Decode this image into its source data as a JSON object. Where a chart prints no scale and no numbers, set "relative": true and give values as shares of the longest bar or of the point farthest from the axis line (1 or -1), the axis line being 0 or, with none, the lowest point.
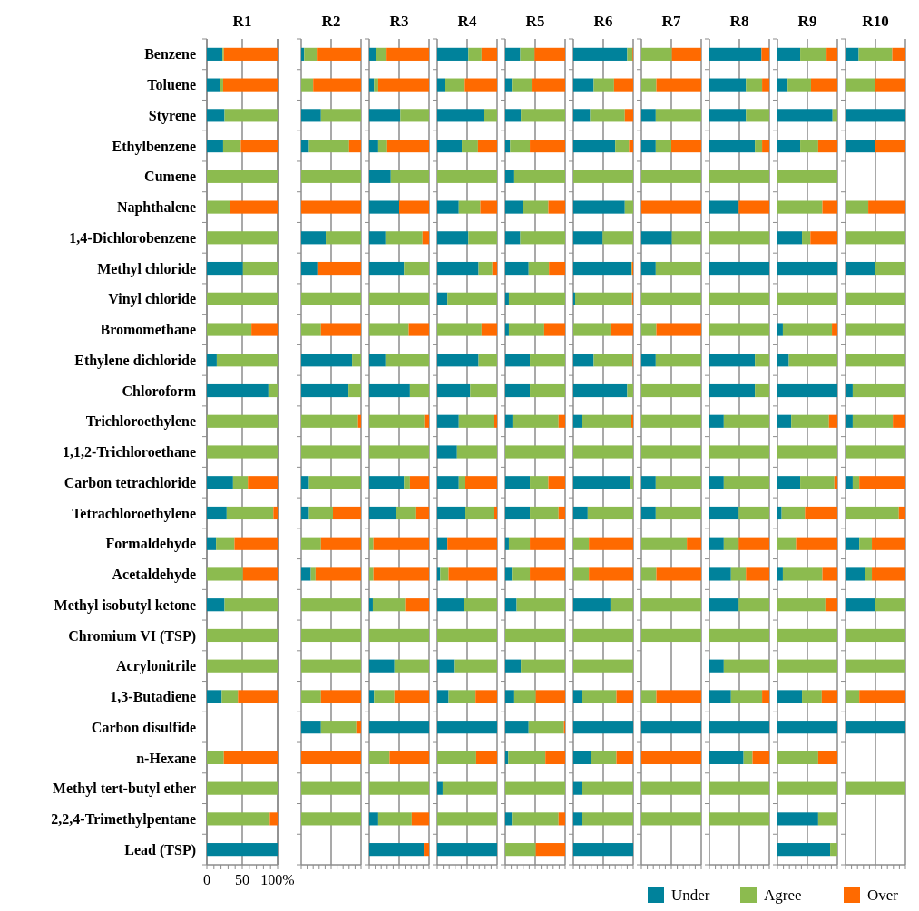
{
  "chart_data": [
    {
      "type": "bar",
      "orientation": "horizontal",
      "stacked": true,
      "title": "R1",
      "grid": "x",
      "legend": "bottom right",
      "xlim": [
        0,
        100
      ],
      "xticks": [
        0,
        {
          "value": 10,
          "label": null
        },
        {
          "value": 20,
          "label": null
        },
        {
          "value": 30,
          "label": null
        },
        {
          "value": 40,
          "label": null
        },
        50,
        {
          "value": 60,
          "label": null
        },
        {
          "value": 70,
          "label": null
        },
        {
          "value": 80,
          "label": null
        },
        {
          "value": 90,
          "label": null
        },
        {
          "value": 100,
          "label": "100%"
        }
      ],
      "categories": [
        "Benzene",
        "Toluene",
        "Styrene",
        "Ethylbenzene",
        "Cumene",
        "Naphthalene",
        "1,4-Dichlorobenzene",
        "Methyl chloride",
        "Vinyl chloride",
        "Bromomethane",
        "Ethylene dichloride",
        "Chloroform",
        "Trichloroethylene",
        "1,1,2-Trichloroethane",
        "Carbon tetrachloride",
        "Tetrachloroethylene",
        "Formaldehyde",
        "Acetaldehyde",
        "Methyl isobutyl ketone",
        "Chromium VI (TSP)",
        "Acrylonitrile",
        "1,3-Butadiene",
        "Carbon disulfide",
        "n-Hexane",
        "Methyl tert-butyl ether",
        "2,2,4-Trimethylpentane",
        "Lead (TSP)"
      ],
      "series": [
        {
          "name": "Under",
          "color": "#00829b",
          "values": [
            22,
            18,
            25,
            23,
            0,
            0,
            0,
            51,
            0,
            0,
            14,
            87,
            0,
            0,
            37,
            28,
            13,
            0,
            25,
            0,
            0,
            21,
            null,
            0,
            0,
            0,
            100
          ]
        },
        {
          "name": "Agree",
          "color": "#8cbb4f",
          "values": [
            2,
            5,
            75,
            25,
            100,
            33,
            100,
            49,
            100,
            63,
            86,
            13,
            100,
            100,
            21,
            66,
            26,
            51,
            75,
            100,
            100,
            23,
            null,
            24,
            100,
            89,
            0
          ]
        },
        {
          "name": "Over",
          "color": "#ff6a00",
          "values": [
            76,
            77,
            0,
            52,
            0,
            67,
            0,
            0,
            0,
            37,
            0,
            0,
            0,
            0,
            42,
            6,
            61,
            49,
            0,
            0,
            0,
            56,
            null,
            76,
            0,
            11,
            0
          ]
        }
      ]
    },
    {
      "type": "bar",
      "orientation": "horizontal",
      "stacked": true,
      "relative": true,
      "title": "R2",
      "ref_lines": [
        {
          "axis": "x",
          "value": 0.5,
          "color": "#8c8c8c"
        }
      ],
      "categories": [
        null,
        null,
        null,
        null,
        null,
        null,
        null,
        null,
        null,
        null,
        null,
        null,
        null,
        null,
        null,
        null,
        null,
        null,
        null,
        null,
        null,
        null,
        null,
        null,
        null,
        null,
        null
      ],
      "series": [
        {
          "color": "#00829b",
          "values": [
            0.05,
            0,
            0.33,
            0.13,
            0,
            0,
            0.41,
            0.27,
            0,
            0,
            0.85,
            0.79,
            0,
            0,
            0.13,
            0.13,
            0,
            0.16,
            0,
            0,
            0,
            0,
            0.33,
            0,
            0,
            0,
            null
          ]
        },
        {
          "color": "#8cbb4f",
          "values": [
            0.21,
            0.2,
            0.67,
            0.67,
            1,
            0,
            0.59,
            0,
            1,
            0.33,
            0.15,
            0.21,
            0.95,
            1,
            0.87,
            0.4,
            0.33,
            0.08,
            1,
            1,
            1,
            0.33,
            0.59,
            0,
            1,
            1,
            null
          ]
        },
        {
          "color": "#ff6a00",
          "values": [
            0.74,
            0.8,
            0,
            0.2,
            0,
            1,
            0,
            0.73,
            0,
            0.67,
            0,
            0,
            0.05,
            0,
            0,
            0.47,
            0.67,
            0.76,
            0,
            0,
            0,
            0.67,
            0.08,
            1,
            0,
            0,
            null
          ]
        }
      ]
    },
    {
      "type": "bar",
      "orientation": "horizontal",
      "stacked": true,
      "relative": true,
      "title": "R3",
      "ref_lines": [
        {
          "axis": "x",
          "value": 0.5,
          "color": "#8c8c8c"
        }
      ],
      "categories": [
        null,
        null,
        null,
        null,
        null,
        null,
        null,
        null,
        null,
        null,
        null,
        null,
        null,
        null,
        null,
        null,
        null,
        null,
        null,
        null,
        null,
        null,
        null,
        null,
        null,
        null,
        null
      ],
      "series": [
        {
          "color": "#00829b",
          "values": [
            0.12,
            0.08,
            0.52,
            0.15,
            0.36,
            0.5,
            0.27,
            0.58,
            0,
            0,
            0.27,
            0.68,
            0,
            0,
            0.58,
            0.45,
            0,
            0,
            0.06,
            0,
            0.42,
            0.08,
            1,
            0,
            0,
            0.15,
            0.91
          ]
        },
        {
          "color": "#8cbb4f",
          "values": [
            0.17,
            0.07,
            0.48,
            0.15,
            0.64,
            0,
            0.62,
            0.42,
            1,
            0.66,
            0.73,
            0.32,
            0.92,
            1,
            0.1,
            0.32,
            0.07,
            0.07,
            0.54,
            1,
            0.58,
            0.34,
            0,
            0.34,
            1,
            0.56,
            0
          ]
        },
        {
          "color": "#ff6a00",
          "values": [
            0.71,
            0.85,
            0,
            0.7,
            0,
            0.5,
            0.11,
            0,
            0,
            0.34,
            0,
            0,
            0.08,
            0,
            0.32,
            0.23,
            0.93,
            0.93,
            0.4,
            0,
            0,
            0.58,
            0,
            0.66,
            0,
            0.29,
            0.09
          ]
        }
      ]
    },
    {
      "type": "bar",
      "orientation": "horizontal",
      "stacked": true,
      "relative": true,
      "title": "R4",
      "ref_lines": [
        {
          "axis": "x",
          "value": 0.5,
          "color": "#8c8c8c"
        }
      ],
      "categories": [
        null,
        null,
        null,
        null,
        null,
        null,
        null,
        null,
        null,
        null,
        null,
        null,
        null,
        null,
        null,
        null,
        null,
        null,
        null,
        null,
        null,
        null,
        null,
        null,
        null,
        null,
        null
      ],
      "series": [
        {
          "color": "#00829b",
          "values": [
            0.52,
            0.13,
            0.78,
            0.41,
            0,
            0.36,
            0.52,
            0.69,
            0.17,
            0,
            0.69,
            0.55,
            0.36,
            0.33,
            0.36,
            0.47,
            0.17,
            0.05,
            0.45,
            0,
            0.28,
            0.19,
            1,
            0,
            0.09,
            0,
            1
          ]
        },
        {
          "color": "#8cbb4f",
          "values": [
            0.22,
            0.33,
            0.22,
            0.27,
            1,
            0.36,
            0.48,
            0.23,
            0.83,
            0.74,
            0.31,
            0.45,
            0.58,
            0.67,
            0.11,
            0.47,
            0,
            0.14,
            0.55,
            1,
            0.72,
            0.45,
            0,
            0.65,
            0.91,
            1,
            0
          ]
        },
        {
          "color": "#ff6a00",
          "values": [
            0.26,
            0.54,
            0,
            0.32,
            0,
            0.28,
            0,
            0.08,
            0,
            0.26,
            0,
            0,
            0.06,
            0,
            0.53,
            0.06,
            0.83,
            0.81,
            0,
            0,
            0,
            0.36,
            0,
            0.35,
            0,
            0,
            0
          ]
        }
      ]
    },
    {
      "type": "bar",
      "orientation": "horizontal",
      "stacked": true,
      "relative": true,
      "title": "R5",
      "ref_lines": [
        {
          "axis": "x",
          "value": 0.5,
          "color": "#8c8c8c"
        }
      ],
      "categories": [
        null,
        null,
        null,
        null,
        null,
        null,
        null,
        null,
        null,
        null,
        null,
        null,
        null,
        null,
        null,
        null,
        null,
        null,
        null,
        null,
        null,
        null,
        null,
        null,
        null,
        null,
        null
      ],
      "series": [
        {
          "color": "#00829b",
          "values": [
            0.25,
            0.11,
            0.26,
            0.08,
            0.15,
            0.29,
            0.25,
            0.39,
            0.06,
            0.06,
            0.41,
            0.41,
            0.12,
            0,
            0.41,
            0.41,
            0.06,
            0.11,
            0.19,
            0,
            0.26,
            0.15,
            0.39,
            0.05,
            0,
            0.11,
            0
          ]
        },
        {
          "color": "#8cbb4f",
          "values": [
            0.24,
            0.33,
            0.74,
            0.33,
            0.85,
            0.43,
            0.75,
            0.34,
            0.94,
            0.59,
            0.59,
            0.59,
            0.77,
            1,
            0.31,
            0.48,
            0.35,
            0.3,
            0.81,
            1,
            0.74,
            0.36,
            0.59,
            0.62,
            1,
            0.78,
            0.51
          ]
        },
        {
          "color": "#ff6a00",
          "values": [
            0.51,
            0.56,
            0,
            0.59,
            0,
            0.28,
            0,
            0.27,
            0,
            0.35,
            0,
            0,
            0.11,
            0,
            0.28,
            0.11,
            0.59,
            0.59,
            0,
            0,
            0,
            0.49,
            0.02,
            0.33,
            0,
            0.11,
            0.49
          ]
        }
      ]
    },
    {
      "type": "bar",
      "orientation": "horizontal",
      "stacked": true,
      "relative": true,
      "title": "R6",
      "ref_lines": [
        {
          "axis": "x",
          "value": 0.5,
          "color": "#8c8c8c"
        }
      ],
      "categories": [
        null,
        null,
        null,
        null,
        null,
        null,
        null,
        null,
        null,
        null,
        null,
        null,
        null,
        null,
        null,
        null,
        null,
        null,
        null,
        null,
        null,
        null,
        null,
        null,
        null,
        null,
        null
      ],
      "series": [
        {
          "color": "#00829b",
          "values": [
            0.9,
            0.34,
            0.28,
            0.7,
            0,
            0.86,
            0.49,
            0.96,
            0.03,
            0,
            0.34,
            0.9,
            0.14,
            0,
            0.94,
            0.24,
            0,
            0,
            0.62,
            0,
            0,
            0.14,
            1,
            0.29,
            0.14,
            0.14,
            1
          ]
        },
        {
          "color": "#8cbb4f",
          "values": [
            0.09,
            0.34,
            0.58,
            0.23,
            1,
            0.14,
            0.51,
            0.02,
            0.95,
            0.62,
            0.65,
            0.1,
            0.82,
            1,
            0.06,
            0.76,
            0.26,
            0.26,
            0.38,
            1,
            1,
            0.58,
            0,
            0.43,
            0.86,
            0.86,
            0
          ]
        },
        {
          "color": "#ff6a00",
          "values": [
            0.01,
            0.32,
            0.14,
            0.07,
            0,
            0,
            0,
            0.02,
            0.02,
            0.38,
            0.01,
            0,
            0.04,
            0,
            0,
            0,
            0.74,
            0.74,
            0,
            0,
            0,
            0.28,
            0,
            0.28,
            0,
            0,
            0
          ]
        }
      ]
    },
    {
      "type": "bar",
      "orientation": "horizontal",
      "stacked": true,
      "relative": true,
      "title": "R7",
      "ref_lines": [
        {
          "axis": "x",
          "value": 0.5,
          "color": "#8c8c8c"
        }
      ],
      "categories": [
        null,
        null,
        null,
        null,
        null,
        null,
        null,
        null,
        null,
        null,
        null,
        null,
        null,
        null,
        null,
        null,
        null,
        null,
        null,
        null,
        null,
        null,
        null,
        null,
        null,
        null,
        null
      ],
      "series": [
        {
          "color": "#00829b",
          "values": [
            0,
            0,
            0.24,
            0.24,
            0,
            0,
            0.51,
            0.24,
            0,
            0,
            0.24,
            0,
            0,
            0,
            0.24,
            0.24,
            0,
            0,
            0,
            0,
            null,
            0,
            1,
            0,
            0,
            0,
            null
          ]
        },
        {
          "color": "#8cbb4f",
          "values": [
            0.51,
            0.25,
            0.76,
            0.26,
            1,
            0,
            0.49,
            0.76,
            1,
            0.25,
            0.76,
            1,
            1,
            1,
            0.76,
            0.76,
            0.76,
            0.25,
            1,
            1,
            null,
            0.25,
            0,
            0,
            1,
            1,
            null
          ]
        },
        {
          "color": "#ff6a00",
          "values": [
            0.49,
            0.75,
            0,
            0.5,
            0,
            1,
            0,
            0,
            0,
            0.75,
            0,
            0,
            0,
            0,
            0,
            0,
            0.24,
            0.75,
            0,
            0,
            null,
            0.75,
            0,
            1,
            0,
            0,
            null
          ]
        }
      ]
    },
    {
      "type": "bar",
      "orientation": "horizontal",
      "stacked": true,
      "relative": true,
      "title": "R8",
      "ref_lines": [
        {
          "axis": "x",
          "value": 0.5,
          "color": "#8c8c8c"
        }
      ],
      "categories": [
        null,
        null,
        null,
        null,
        null,
        null,
        null,
        null,
        null,
        null,
        null,
        null,
        null,
        null,
        null,
        null,
        null,
        null,
        null,
        null,
        null,
        null,
        null,
        null,
        null,
        null,
        null
      ],
      "series": [
        {
          "color": "#00829b",
          "values": [
            0.87,
            0.61,
            0.61,
            0.76,
            0,
            0.49,
            0,
            1,
            0,
            0,
            0.76,
            0.76,
            0.24,
            0,
            0.24,
            0.49,
            0.24,
            0.36,
            0.49,
            0,
            0.24,
            0.36,
            1,
            0.57,
            0,
            0,
            null
          ]
        },
        {
          "color": "#8cbb4f",
          "values": [
            0,
            0.27,
            0.39,
            0.12,
            1,
            0,
            1,
            0,
            1,
            1,
            0.24,
            0.24,
            0.76,
            1,
            0.76,
            0.51,
            0.25,
            0.25,
            0.51,
            1,
            0.76,
            0.52,
            0,
            0.15,
            1,
            1,
            null
          ]
        },
        {
          "color": "#ff6a00",
          "values": [
            0.13,
            0.12,
            0,
            0.12,
            0,
            0.51,
            0,
            0,
            0,
            0,
            0,
            0,
            0,
            0,
            0,
            0,
            0.51,
            0.39,
            0,
            0,
            0,
            0.12,
            0,
            0.28,
            0,
            0,
            null
          ]
        }
      ]
    },
    {
      "type": "bar",
      "orientation": "horizontal",
      "stacked": true,
      "relative": true,
      "title": "R9",
      "ref_lines": [
        {
          "axis": "x",
          "value": 0.5,
          "color": "#8c8c8c"
        }
      ],
      "categories": [
        null,
        null,
        null,
        null,
        null,
        null,
        null,
        null,
        null,
        null,
        null,
        null,
        null,
        null,
        null,
        null,
        null,
        null,
        null,
        null,
        null,
        null,
        null,
        null,
        null,
        null,
        null
      ],
      "series": [
        {
          "color": "#00829b",
          "values": [
            0.38,
            0.17,
            0.92,
            0.38,
            0,
            0,
            0.41,
            1,
            0,
            0.09,
            0.19,
            1,
            0.23,
            0,
            0.38,
            0.07,
            0,
            0.09,
            0,
            0,
            0,
            0.41,
            1,
            0,
            0,
            0.68,
            0.88
          ]
        },
        {
          "color": "#8cbb4f",
          "values": [
            0.44,
            0.39,
            0.08,
            0.3,
            1,
            0.75,
            0.14,
            0,
            1,
            0.82,
            0.81,
            0,
            0.63,
            1,
            0.57,
            0.39,
            0.31,
            0.66,
            0.8,
            1,
            1,
            0.33,
            0,
            0.68,
            1,
            0.32,
            0.12
          ]
        },
        {
          "color": "#ff6a00",
          "values": [
            0.18,
            0.44,
            0,
            0.32,
            0,
            0.25,
            0.45,
            0,
            0,
            0.09,
            0,
            0,
            0.14,
            0,
            0.05,
            0.54,
            0.69,
            0.25,
            0.2,
            0,
            0,
            0.26,
            0,
            0.32,
            0,
            0,
            0
          ]
        }
      ]
    },
    {
      "type": "bar",
      "orientation": "horizontal",
      "stacked": true,
      "relative": true,
      "title": "R10",
      "ref_lines": [
        {
          "axis": "x",
          "value": 0.5,
          "color": "#8c8c8c"
        }
      ],
      "categories": [
        null,
        null,
        null,
        null,
        null,
        null,
        null,
        null,
        null,
        null,
        null,
        null,
        null,
        null,
        null,
        null,
        null,
        null,
        null,
        null,
        null,
        null,
        null,
        null,
        null,
        null,
        null
      ],
      "series": [
        {
          "color": "#00829b",
          "values": [
            0.22,
            0,
            1,
            0.5,
            null,
            0,
            0,
            0.5,
            0,
            0,
            0,
            0.12,
            0.12,
            0,
            0.12,
            0,
            0.23,
            0.33,
            0.5,
            0,
            0,
            0,
            1,
            null,
            0,
            null,
            null
          ]
        },
        {
          "color": "#8cbb4f",
          "values": [
            0.56,
            0.5,
            0,
            0,
            null,
            0.38,
            1,
            0.5,
            1,
            1,
            1,
            0.88,
            0.67,
            1,
            0.11,
            0.89,
            0.21,
            0.11,
            0.5,
            1,
            1,
            0.23,
            0,
            null,
            1,
            null,
            null
          ]
        },
        {
          "color": "#ff6a00",
          "values": [
            0.22,
            0.5,
            0,
            0.5,
            null,
            0.62,
            0,
            0,
            0,
            0,
            0,
            0,
            0.21,
            0,
            0.77,
            0.11,
            0.56,
            0.56,
            0,
            0,
            0,
            0.77,
            0,
            null,
            0,
            null,
            null
          ]
        }
      ]
    }
  ]
}
